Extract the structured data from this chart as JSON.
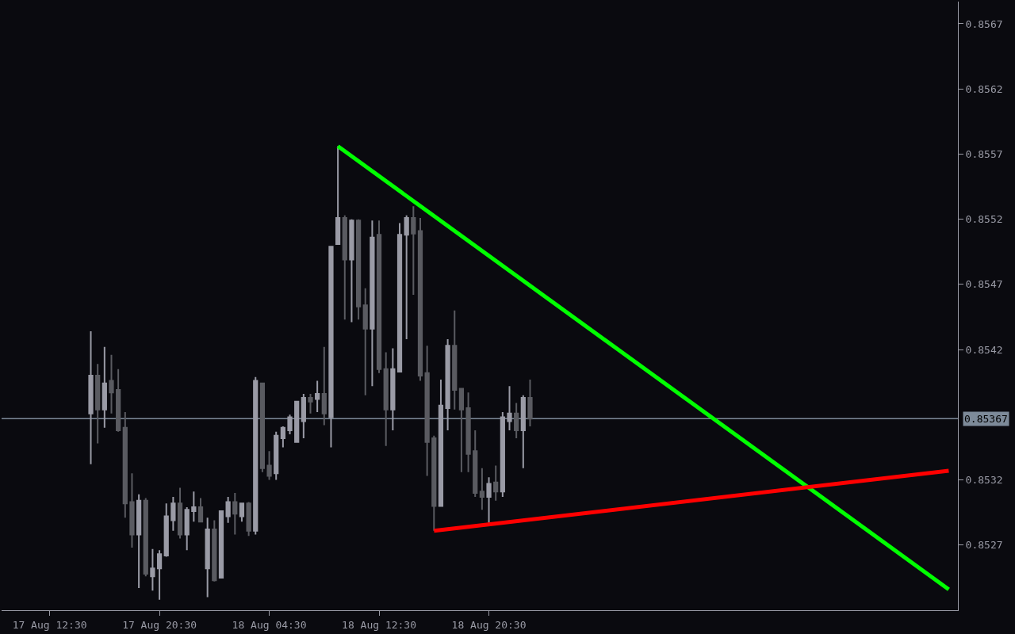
{
  "chart_data": {
    "type": "candlestick",
    "x": [
      "--08-17T15:30",
      "--08-17T16:00",
      "--08-17T16:30",
      "--08-17T17:00",
      "--08-17T17:30",
      "--08-17T18:00",
      "--08-17T18:30",
      "--08-17T19:00",
      "--08-17T19:30",
      "--08-17T20:00",
      "--08-17T20:30",
      "--08-17T21:00",
      "--08-17T21:30",
      "--08-17T22:00",
      "--08-17T22:30",
      "--08-17T23:00",
      "--08-17T23:30",
      "--08-18T00:00",
      "--08-18T00:30",
      "--08-18T01:00",
      "--08-18T01:30",
      "--08-18T02:00",
      "--08-18T02:30",
      "--08-18T03:00",
      "--08-18T03:30",
      "--08-18T04:00",
      "--08-18T04:30",
      "--08-18T05:00",
      "--08-18T05:30",
      "--08-18T06:00",
      "--08-18T06:30",
      "--08-18T07:00",
      "--08-18T07:30",
      "--08-18T08:00",
      "--08-18T08:30",
      "--08-18T09:00",
      "--08-18T09:30",
      "--08-18T10:00",
      "--08-18T10:30",
      "--08-18T11:00",
      "--08-18T11:30",
      "--08-18T12:00",
      "--08-18T12:30",
      "--08-18T13:00",
      "--08-18T13:30",
      "--08-18T14:00",
      "--08-18T14:30",
      "--08-18T15:00",
      "--08-18T15:30",
      "--08-18T16:00",
      "--08-18T16:30",
      "--08-18T17:00",
      "--08-18T17:30",
      "--08-18T18:00",
      "--08-18T18:30",
      "--08-18T19:00",
      "--08-18T19:30",
      "--08-18T20:00",
      "--08-18T20:30",
      "--08-18T21:00",
      "--08-18T21:30",
      "--08-18T22:00",
      "--08-18T22:30",
      "--08-18T23:00",
      "--08-18T23:30"
    ],
    "ohlc": [
      [
        0.85371,
        0.85434,
        0.85332,
        0.854
      ],
      [
        0.854,
        0.85409,
        0.85348,
        0.85374
      ],
      [
        0.85374,
        0.85422,
        0.8536,
        0.85394
      ],
      [
        0.85396,
        0.85416,
        0.85371,
        0.85387
      ],
      [
        0.85389,
        0.85405,
        0.85357,
        0.85358
      ],
      [
        0.8536,
        0.85372,
        0.85291,
        0.85302
      ],
      [
        0.85303,
        0.85325,
        0.85268,
        0.85278
      ],
      [
        0.85278,
        0.85309,
        0.85237,
        0.85304
      ],
      [
        0.85304,
        0.85306,
        0.85246,
        0.85248
      ],
      [
        0.85246,
        0.85267,
        0.85235,
        0.85252
      ],
      [
        0.85252,
        0.85266,
        0.85228,
        0.85263
      ],
      [
        0.85262,
        0.85302,
        0.85261,
        0.85292
      ],
      [
        0.85289,
        0.85307,
        0.85281,
        0.85302
      ],
      [
        0.85302,
        0.85314,
        0.85275,
        0.85278
      ],
      [
        0.85278,
        0.85299,
        0.85266,
        0.85297
      ],
      [
        0.85296,
        0.85311,
        0.85288,
        0.85299
      ],
      [
        0.85299,
        0.85306,
        0.85288,
        0.85288
      ],
      [
        0.85252,
        0.85291,
        0.8523,
        0.85282
      ],
      [
        0.85282,
        0.85289,
        0.85242,
        0.85243
      ],
      [
        0.85245,
        0.85296,
        0.85245,
        0.85296
      ],
      [
        0.85292,
        0.85307,
        0.85287,
        0.85303
      ],
      [
        0.85303,
        0.8531,
        0.85278,
        0.85294
      ],
      [
        0.85292,
        0.85302,
        0.85288,
        0.85302
      ],
      [
        0.85302,
        0.85303,
        0.85277,
        0.85281
      ],
      [
        0.85281,
        0.85399,
        0.85278,
        0.85396
      ],
      [
        0.85394,
        0.85394,
        0.85326,
        0.85329
      ],
      [
        0.85331,
        0.85342,
        0.8532,
        0.85323
      ],
      [
        0.85325,
        0.85357,
        0.8532,
        0.85354
      ],
      [
        0.85352,
        0.85361,
        0.85345,
        0.8536
      ],
      [
        0.85358,
        0.8537,
        0.85355,
        0.85368
      ],
      [
        0.85349,
        0.8538,
        0.85349,
        0.8538
      ],
      [
        0.85365,
        0.85386,
        0.85352,
        0.85383
      ],
      [
        0.85383,
        0.85386,
        0.85371,
        0.8538
      ],
      [
        0.85382,
        0.85396,
        0.85372,
        0.85386
      ],
      [
        0.85386,
        0.85422,
        0.85362,
        0.85371
      ],
      [
        0.85368,
        0.85499,
        0.85345,
        0.85499
      ],
      [
        0.85501,
        0.85576,
        0.85501,
        0.85521
      ],
      [
        0.85521,
        0.85523,
        0.85443,
        0.85489
      ],
      [
        0.85489,
        0.8552,
        0.85441,
        0.85519
      ],
      [
        0.85519,
        0.8552,
        0.85443,
        0.85453
      ],
      [
        0.85454,
        0.85467,
        0.85385,
        0.85436
      ],
      [
        0.85436,
        0.85519,
        0.85392,
        0.85506
      ],
      [
        0.85508,
        0.85519,
        0.85402,
        0.85405
      ],
      [
        0.85405,
        0.85418,
        0.85346,
        0.85374
      ],
      [
        0.85374,
        0.85421,
        0.85358,
        0.85405
      ],
      [
        0.85403,
        0.85517,
        0.85403,
        0.85508
      ],
      [
        0.85508,
        0.85523,
        0.85428,
        0.85521
      ],
      [
        0.85521,
        0.8553,
        0.85462,
        0.85509
      ],
      [
        0.85511,
        0.85521,
        0.85396,
        0.854
      ],
      [
        0.85402,
        0.85423,
        0.85323,
        0.85349
      ],
      [
        0.85352,
        0.85354,
        0.85281,
        0.853
      ],
      [
        0.853,
        0.85397,
        0.853,
        0.85377
      ],
      [
        0.85375,
        0.85428,
        0.85358,
        0.85423
      ],
      [
        0.85423,
        0.8545,
        0.85374,
        0.85389
      ],
      [
        0.8539,
        0.8539,
        0.85326,
        0.85374
      ],
      [
        0.85375,
        0.85387,
        0.85326,
        0.8534
      ],
      [
        0.85342,
        0.85358,
        0.85307,
        0.8531
      ],
      [
        0.85311,
        0.85329,
        0.85297,
        0.85307
      ],
      [
        0.85307,
        0.85322,
        0.85287,
        0.85317
      ],
      [
        0.85318,
        0.85331,
        0.85304,
        0.85311
      ],
      [
        0.85311,
        0.85372,
        0.85307,
        0.85368
      ],
      [
        0.85365,
        0.85392,
        0.85358,
        0.85371
      ],
      [
        0.85371,
        0.85379,
        0.85352,
        0.85358
      ],
      [
        0.85358,
        0.85385,
        0.85329,
        0.85383
      ],
      [
        0.85383,
        0.85397,
        0.85361,
        0.85367
      ]
    ],
    "colors": [
      "#9a9ba6",
      "#5a5b61",
      "#9a9ba6",
      "#5a5b61",
      "#5a5b61",
      "#5a5b61",
      "#5a5b61",
      "#9a9ba6",
      "#5a5b61",
      "#9a9ba6",
      "#9a9ba6",
      "#9a9ba6",
      "#9a9ba6",
      "#5a5b61",
      "#9a9ba6",
      "#9a9ba6",
      "#5a5b61",
      "#9a9ba6",
      "#5a5b61",
      "#9a9ba6",
      "#9a9ba6",
      "#5a5b61",
      "#9a9ba6",
      "#5a5b61",
      "#9a9ba6",
      "#5a5b61",
      "#5a5b61",
      "#9a9ba6",
      "#9a9ba6",
      "#9a9ba6",
      "#9a9ba6",
      "#9a9ba6",
      "#5a5b61",
      "#9a9ba6",
      "#5a5b61",
      "#9a9ba6",
      "#9a9ba6",
      "#5a5b61",
      "#9a9ba6",
      "#5a5b61",
      "#5a5b61",
      "#9a9ba6",
      "#5a5b61",
      "#5a5b61",
      "#9a9ba6",
      "#9a9ba6",
      "#9a9ba6",
      "#5a5b61",
      "#5a5b61",
      "#5a5b61",
      "#5a5b61",
      "#9a9ba6",
      "#9a9ba6",
      "#5a5b61",
      "#5a5b61",
      "#5a5b61",
      "#5a5b61",
      "#5a5b61",
      "#9a9ba6",
      "#5a5b61",
      "#9a9ba6",
      "#9a9ba6",
      "#5a5b61",
      "#9a9ba6",
      "#5a5b61"
    ],
    "series": [
      {
        "type": "line",
        "color": "#00ff00",
        "x": [
          "--08-18T09:30",
          "--08-20T06:00"
        ],
        "values": [
          0.85576,
          0.85236
        ]
      },
      {
        "type": "line",
        "color": "#ff0000",
        "x": [
          "--08-18T16:30",
          "--08-20T06:00"
        ],
        "values": [
          0.85281,
          0.85327
        ]
      }
    ],
    "ref_lines": [
      {
        "axis": "y",
        "value": 0.85367,
        "label": "0.85367",
        "color": "#7d8a99"
      }
    ],
    "xlim": [
      "--08-17T09:00",
      "--08-20T06:40"
    ],
    "xticks": [
      {
        "value": "--08-17T12:30",
        "label": "17 Aug 12:30"
      },
      {
        "value": "--08-17T20:30",
        "label": "17 Aug 20:30"
      },
      {
        "value": "--08-18T04:30",
        "label": "18 Aug 04:30"
      },
      {
        "value": "--08-18T12:30",
        "label": "18 Aug 12:30"
      },
      {
        "value": "--08-18T20:30",
        "label": "18 Aug 20:30"
      }
    ],
    "ylim": [
      0.8522,
      0.85687
    ],
    "yticks": [
      0.8567,
      0.8562,
      0.8557,
      0.8552,
      0.8547,
      0.8542,
      0.8532,
      0.8527
    ],
    "grid": false
  }
}
